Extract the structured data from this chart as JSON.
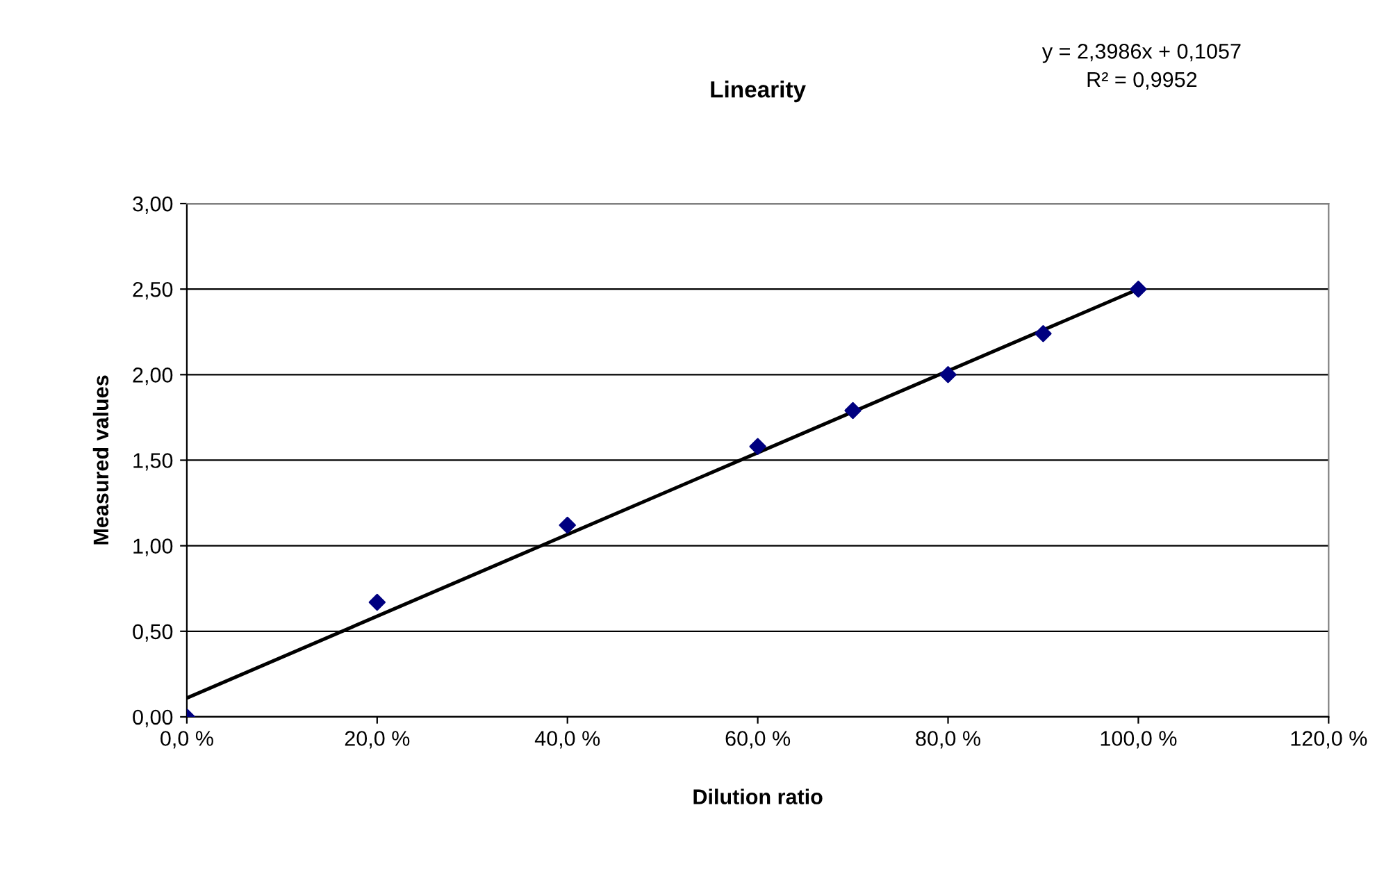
{
  "chart_data": {
    "type": "scatter",
    "title": "Linearity",
    "xlabel": "Dilution ratio",
    "ylabel": "Measured values",
    "annotations": [
      "y = 2,3986x + 0,1057",
      "R² = 0,9952"
    ],
    "series": [
      {
        "color": "#000080",
        "marker": "diamond",
        "x": [
          0,
          0.2,
          0.4,
          0.6,
          0.7,
          0.8,
          0.9,
          1.0
        ],
        "values": [
          0,
          0.67,
          1.12,
          1.58,
          1.79,
          2.0,
          2.24,
          2.5
        ]
      },
      {
        "type": "line",
        "color": "#000000",
        "marker": "none",
        "line_style": "solid",
        "x": [
          0,
          1.0
        ],
        "values": [
          0.11,
          2.5
        ]
      }
    ],
    "xlim": [
      0,
      1.2
    ],
    "xticks": [
      {
        "value": 0,
        "label": "0,0 %"
      },
      {
        "value": 0.2,
        "label": "20,0 %"
      },
      {
        "value": 0.4,
        "label": "40,0 %"
      },
      {
        "value": 0.6,
        "label": "60,0 %"
      },
      {
        "value": 0.8,
        "label": "80,0 %"
      },
      {
        "value": 1.0,
        "label": "100,0 %"
      },
      {
        "value": 1.2,
        "label": "120,0 %"
      }
    ],
    "ylim": [
      0,
      3
    ],
    "yticks": [
      {
        "value": 0,
        "label": "0,00"
      },
      {
        "value": 0.5,
        "label": "0,50"
      },
      {
        "value": 1.0,
        "label": "1,00"
      },
      {
        "value": 1.5,
        "label": "1,50"
      },
      {
        "value": 2.0,
        "label": "2,00"
      },
      {
        "value": 2.5,
        "label": "2,50"
      },
      {
        "value": 3.0,
        "label": "3,00"
      }
    ],
    "grid": "y",
    "legend": false
  }
}
